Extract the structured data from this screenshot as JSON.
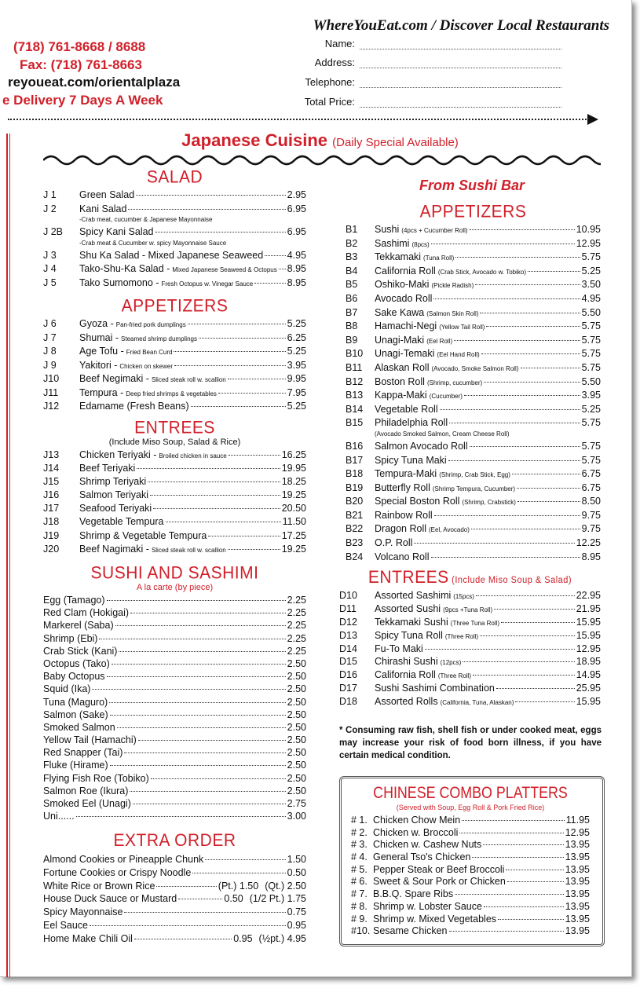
{
  "header": {
    "site_title": "WhereYouEat.com / Discover Local Restaurants",
    "phone": "(718) 761-8668 / 8688",
    "fax": "Fax: (718) 761-8663",
    "url": "reyoueat.com/orientalplaza",
    "delivery": "e Delivery 7 Days A Week",
    "form": [
      {
        "label": "Name:"
      },
      {
        "label": "Address:"
      },
      {
        "label": "Telephone:"
      },
      {
        "label": "Total Price:"
      }
    ]
  },
  "title": {
    "main": "Japanese Cuisine",
    "sub": "(Daily Special Available)"
  },
  "colors": {
    "accent": "#d0202a"
  },
  "left": [
    {
      "heading": "SALAD",
      "items": [
        {
          "code": "J 1",
          "name": "Green Salad",
          "price": "2.95"
        },
        {
          "code": "J 2",
          "name": "Kani Salad",
          "price": "6.95",
          "note": "-Crab meat, cucumber & Japanese Mayonnaise"
        },
        {
          "code": "J 2B",
          "name": "Spicy Kani Salad",
          "price": "6.95",
          "note": "-Crab meat & Cucumber w. spicy Mayonnaise Sauce"
        },
        {
          "code": "J 3",
          "name": "Shu Ka Salad - Mixed Japanese Seaweed",
          "price": "4.95"
        },
        {
          "code": "J 4",
          "name": "Tako-Shu-Ka Salad -",
          "desc": "Mixed Japanese Seaweed & Octopus",
          "price": "8.95"
        },
        {
          "code": "J 5",
          "name": "Tako Sumomono -",
          "desc": "Fresh Octopus w. Vinegar Sauce",
          "price": "8.95"
        }
      ]
    },
    {
      "heading": "APPETIZERS",
      "items": [
        {
          "code": "J 6",
          "name": "Gyoza -",
          "desc": "Pan-fried pork dumplings",
          "price": "5.25"
        },
        {
          "code": "J 7",
          "name": "Shumai -",
          "desc": "Steamed shrimp dumplings",
          "price": "6.25"
        },
        {
          "code": "J 8",
          "name": "Age Tofu -",
          "desc": "Fried Bean Curd",
          "price": "5.25"
        },
        {
          "code": "J 9",
          "name": "Yakitori -",
          "desc": "Chicken on skewer",
          "price": "3.95"
        },
        {
          "code": "J10",
          "name": "Beef Negimaki -",
          "desc": "Sliced steak roll w. scallion",
          "price": "9.95"
        },
        {
          "code": "J11",
          "name": "Tempura -",
          "desc": "Deep fried shrimps & vegetables",
          "price": "7.95"
        },
        {
          "code": "J12",
          "name": "Edamame (Fresh Beans)",
          "price": "5.25"
        }
      ]
    },
    {
      "heading": "ENTREES",
      "sub": "(Include Miso Soup, Salad & Rice)",
      "items": [
        {
          "code": "J13",
          "name": "Chicken Teriyaki -",
          "desc": "Broiled chicken in sauce",
          "price": "16.25"
        },
        {
          "code": "J14",
          "name": "Beef Teriyaki",
          "price": "19.95"
        },
        {
          "code": "J15",
          "name": "Shrimp Teriyaki",
          "price": "18.25"
        },
        {
          "code": "J16",
          "name": "Salmon Teriyaki",
          "price": "19.25"
        },
        {
          "code": "J17",
          "name": "Seafood Teriyaki",
          "price": "20.50"
        },
        {
          "code": "J18",
          "name": "Vegetable Tempura",
          "price": "11.50"
        },
        {
          "code": "J19",
          "name": "Shrimp & Vegetable Tempura",
          "price": "17.25"
        },
        {
          "code": "J20",
          "name": "Beef Nagimaki -",
          "desc": "Sliced steak roll w. scallion",
          "price": "19.25"
        }
      ]
    },
    {
      "heading": "SUSHI AND SASHIMI",
      "sub": "A la carte (by piece)",
      "items": [
        {
          "name": "Egg (Tamago)",
          "price": "2.25"
        },
        {
          "name": "Red Clam (Hokigai)",
          "price": "2.25"
        },
        {
          "name": "Markerel (Saba)",
          "price": "2.25"
        },
        {
          "name": "Shrimp (Ebi)",
          "price": "2.25"
        },
        {
          "name": "Crab Stick (Kani)",
          "price": "2.25"
        },
        {
          "name": "Octopus (Tako)",
          "price": "2.50"
        },
        {
          "name": "Baby Octopus",
          "price": "2.50"
        },
        {
          "name": "Squid (Ika)",
          "price": "2.50"
        },
        {
          "name": "Tuna (Maguro)",
          "price": "2.50"
        },
        {
          "name": "Salmon (Sake)",
          "price": "2.50"
        },
        {
          "name": "Smoked Salmon",
          "price": "2.50"
        },
        {
          "name": "Yellow Tail (Hamachi)",
          "price": "2.50"
        },
        {
          "name": "Red Snapper (Tai)",
          "price": "2.50"
        },
        {
          "name": "Fluke (Hirame)",
          "price": "2.50"
        },
        {
          "name": "Flying Fish Roe (Tobiko)",
          "price": "2.50"
        },
        {
          "name": "Salmon Roe (Ikura)",
          "price": "2.50"
        },
        {
          "name": "Smoked Eel (Unagi)",
          "price": "2.75"
        },
        {
          "name": "Uni......",
          "price": "3.00"
        }
      ]
    },
    {
      "heading": "EXTRA ORDER",
      "items": [
        {
          "name": "Almond Cookies or Pineapple Chunk",
          "price": "1.50"
        },
        {
          "name": "Fortune Cookies or Crispy Noodle",
          "price": "0.50"
        },
        {
          "name": "White Rice or Brown Rice",
          "mid": "(Pt.) 1.50",
          "price": "(Qt.) 2.50"
        },
        {
          "name": "House Duck Sauce or Mustard",
          "mid": "0.50",
          "price": "(1/2 Pt.) 1.75"
        },
        {
          "name": "Spicy Mayonnaise",
          "price": "0.75"
        },
        {
          "name": "Eel Sauce",
          "price": "0.95"
        },
        {
          "name": "Home Make Chili Oil",
          "mid": "0.95",
          "price": "(½pt.) 4.95"
        }
      ]
    }
  ],
  "right": {
    "section_title": "From Sushi Bar",
    "appetizers": {
      "heading": "APPETIZERS",
      "items": [
        {
          "code": "B1",
          "name": "Sushi",
          "desc": "(4pcs + Cucumber Roll)",
          "price": "10.95"
        },
        {
          "code": "B2",
          "name": "Sashimi",
          "desc": "(8pcs)",
          "price": "12.95"
        },
        {
          "code": "B3",
          "name": "Tekkamaki",
          "desc": "(Tuna Roll)",
          "price": "5.75"
        },
        {
          "code": "B4",
          "name": "California Roll",
          "desc": "(Crab Stick, Avocado w. Tobiko)",
          "price": "5.25"
        },
        {
          "code": "B5",
          "name": "Oshiko-Maki",
          "desc": "(Pickle Radish)",
          "price": "3.50"
        },
        {
          "code": "B6",
          "name": "Avocado Roll",
          "price": "4.95"
        },
        {
          "code": "B7",
          "name": "Sake Kawa",
          "desc": "(Salmon Skin Roll)",
          "price": "5.50"
        },
        {
          "code": "B8",
          "name": "Hamachi-Negi",
          "desc": "(Yellow Tail Roll)",
          "price": "5.75"
        },
        {
          "code": "B9",
          "name": "Unagi-Maki",
          "desc": "(Eel Roll)",
          "price": "5.75"
        },
        {
          "code": "B10",
          "name": "Unagi-Temaki",
          "desc": "(Eel Hand Roll)",
          "price": "5.75"
        },
        {
          "code": "B11",
          "name": "Alaskan Roll",
          "desc": "(Avocado, Smoke Salmon Roll)",
          "price": "5.75"
        },
        {
          "code": "B12",
          "name": "Boston Roll",
          "desc": "(Shrimp, cucumber)",
          "price": "5.50"
        },
        {
          "code": "B13",
          "name": "Kappa-Maki",
          "desc": "(Cucumber)",
          "price": "3.95"
        },
        {
          "code": "B14",
          "name": "Vegetable Roll",
          "price": "5.25"
        },
        {
          "code": "B15",
          "name": "Philadelphia Roll",
          "price": "5.75",
          "note": "(Avocado Smoked Salmon, Cream Cheese Roll)"
        },
        {
          "code": "B16",
          "name": "Salmon Avocado Roll",
          "price": "5.75"
        },
        {
          "code": "B17",
          "name": "Spicy Tuna Maki",
          "price": "5.75"
        },
        {
          "code": "B18",
          "name": "Tempura-Maki",
          "desc": "(Shrimp, Crab Stick, Egg)",
          "price": "6.75"
        },
        {
          "code": "B19",
          "name": "Butterfly Roll",
          "desc": "(Shrimp Tempura, Cucumber)",
          "price": "6.75"
        },
        {
          "code": "B20",
          "name": "Special Boston Roll",
          "desc": "(Shrimp, Crabstick)",
          "price": "8.50"
        },
        {
          "code": "B21",
          "name": "Rainbow Roll",
          "price": "9.75"
        },
        {
          "code": "B22",
          "name": "Dragon Roll",
          "desc": "(Eel, Avocado)",
          "price": "9.75"
        },
        {
          "code": "B23",
          "name": "O.P. Roll",
          "price": "12.25"
        },
        {
          "code": "B24",
          "name": "Volcano Roll",
          "price": "8.95"
        }
      ]
    },
    "entrees": {
      "heading": "ENTREES",
      "sub": "(Include Miso Soup & Salad)",
      "items": [
        {
          "code": "D10",
          "name": "Assorted Sashimi",
          "desc": "(15pcs)",
          "price": "22.95"
        },
        {
          "code": "D11",
          "name": "Assorted Sushi",
          "desc": "(9pcs +Tuna Roll)",
          "price": "21.95"
        },
        {
          "code": "D12",
          "name": "Tekkamaki Sushi",
          "desc": "(Three Tuna Roll)",
          "price": "15.95"
        },
        {
          "code": "D13",
          "name": "Spicy Tuna Roll",
          "desc": "(Three Roll)",
          "price": "15.95"
        },
        {
          "code": "D14",
          "name": "Fu-To Maki",
          "price": "12.95"
        },
        {
          "code": "D15",
          "name": "Chirashi Sushi",
          "desc": "(12pcs)",
          "price": "18.95"
        },
        {
          "code": "D16",
          "name": "California Roll",
          "desc": "(Three Roll)",
          "price": "14.95"
        },
        {
          "code": "D17",
          "name": "Sushi Sashimi Combination",
          "price": "25.95"
        },
        {
          "code": "D18",
          "name": "Assorted Rolls",
          "desc": "(California, Tuna, Alaskan)",
          "price": "15.95"
        }
      ]
    },
    "warning": "* Consuming raw fish, shell fish or under cooked meat, eggs may increase your risk of food born illness, if you have certain medical condition.",
    "combo": {
      "heading": "CHINESE COMBO PLATTERS",
      "sub": "(Served with Soup, Egg Roll & Pork Fried Rice)",
      "items": [
        {
          "code": "# 1.",
          "name": "Chicken Chow Mein",
          "price": "11.95"
        },
        {
          "code": "# 2.",
          "name": "Chicken w. Broccoli",
          "price": "12.95"
        },
        {
          "code": "# 3.",
          "name": "Chicken w. Cashew Nuts",
          "price": "13.95"
        },
        {
          "code": "# 4.",
          "name": "General Tso's Chicken",
          "price": "13.95"
        },
        {
          "code": "# 5.",
          "name": "Pepper Steak or Beef  Broccoli",
          "price": "13.95"
        },
        {
          "code": "# 6.",
          "name": "Sweet & Sour Pork or Chicken",
          "price": "13.95"
        },
        {
          "code": "# 7.",
          "name": "B.B.Q. Spare Ribs",
          "price": "13.95"
        },
        {
          "code": "# 8.",
          "name": "Shrimp w. Lobster  Sauce",
          "price": "13.95"
        },
        {
          "code": "# 9.",
          "name": "Shrimp w. Mixed Vegetables",
          "price": "13.95"
        },
        {
          "code": "#10.",
          "name": "Sesame Chicken",
          "price": "13.95"
        }
      ]
    }
  }
}
